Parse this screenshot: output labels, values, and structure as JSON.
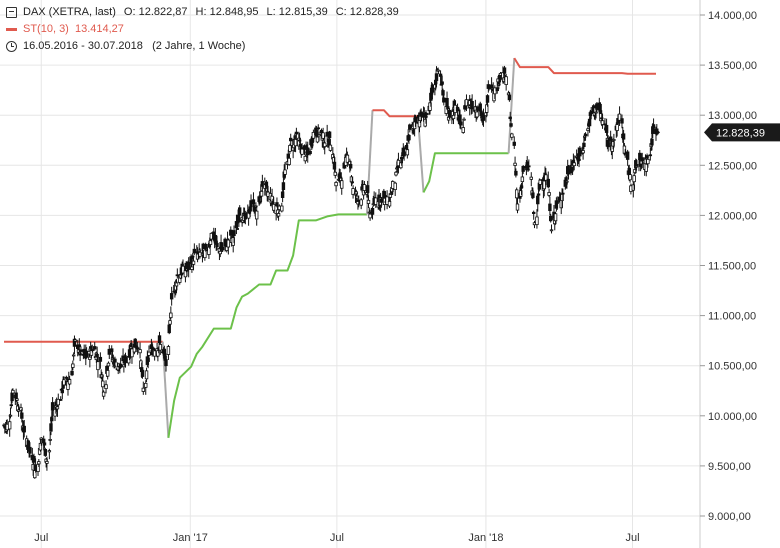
{
  "legend": {
    "symbol": "DAX (XETRA, last)",
    "o_label": "O:",
    "o_value": "12.822,87",
    "h_label": "H:",
    "h_value": "12.848,95",
    "l_label": "L:",
    "l_value": "12.815,39",
    "c_label": "C:",
    "c_value": "12.828,39",
    "indicator": "ST(10, 3)",
    "indicator_value": "13.414,27",
    "range": "16.05.2016 - 30.07.2018",
    "range_span": "(2 Jahre, 1 Woche)"
  },
  "colors": {
    "supertrend_down": "#e05a4e",
    "supertrend_up": "#6cc14a",
    "supertrend_flip": "#aaaaaa",
    "candle": "#111111",
    "grid": "#e6e6e6",
    "last_label_bg": "#1a1a1a"
  },
  "chart_data": {
    "type": "candlestick",
    "title": "DAX (XETRA, last)",
    "x_tick_labels": [
      "Jul",
      "Jan '17",
      "Jul",
      "Jan '18",
      "Jul"
    ],
    "x_tick_dates": [
      "2016-07-01",
      "2017-01-01",
      "2017-07-01",
      "2018-01-01",
      "2018-07-01"
    ],
    "y_ticks": [
      9000,
      9500,
      10000,
      10500,
      11000,
      11500,
      12000,
      12500,
      13000,
      13500,
      14000
    ],
    "y_tick_labels": [
      "9.000,00",
      "9.500,00",
      "10.000,00",
      "10.500,00",
      "11.000,00",
      "11.500,00",
      "12.000,00",
      "12.500,00",
      "13.000,00",
      "13.500,00",
      "14.000,00"
    ],
    "ylim": [
      8950,
      14080
    ],
    "last_value": 12828.39,
    "last_value_label": "12.828,39",
    "weekly_close": [
      [
        "2016-05-16",
        9900
      ],
      [
        "2016-05-23",
        10250
      ],
      [
        "2016-05-30",
        10100
      ],
      [
        "2016-06-06",
        9800
      ],
      [
        "2016-06-13",
        9630
      ],
      [
        "2016-06-20",
        9450
      ],
      [
        "2016-06-27",
        9780
      ],
      [
        "2016-07-04",
        9550
      ],
      [
        "2016-07-11",
        10050
      ],
      [
        "2016-07-18",
        10150
      ],
      [
        "2016-07-25",
        10330
      ],
      [
        "2016-08-01",
        10370
      ],
      [
        "2016-08-08",
        10730
      ],
      [
        "2016-08-15",
        10600
      ],
      [
        "2016-08-22",
        10590
      ],
      [
        "2016-08-29",
        10680
      ],
      [
        "2016-09-05",
        10570
      ],
      [
        "2016-09-12",
        10280
      ],
      [
        "2016-09-19",
        10630
      ],
      [
        "2016-09-26",
        10510
      ],
      [
        "2016-10-03",
        10490
      ],
      [
        "2016-10-10",
        10580
      ],
      [
        "2016-10-17",
        10700
      ],
      [
        "2016-10-24",
        10710
      ],
      [
        "2016-10-31",
        10260
      ],
      [
        "2016-11-07",
        10630
      ],
      [
        "2016-11-14",
        10680
      ],
      [
        "2016-11-21",
        10700
      ],
      [
        "2016-11-28",
        10510
      ],
      [
        "2016-12-05",
        11200
      ],
      [
        "2016-12-12",
        11400
      ],
      [
        "2016-12-19",
        11450
      ],
      [
        "2016-12-26",
        11480
      ],
      [
        "2017-01-02",
        11600
      ],
      [
        "2017-01-09",
        11620
      ],
      [
        "2017-01-16",
        11630
      ],
      [
        "2017-01-23",
        11810
      ],
      [
        "2017-01-30",
        11670
      ],
      [
        "2017-02-06",
        11660
      ],
      [
        "2017-02-13",
        11760
      ],
      [
        "2017-02-20",
        11800
      ],
      [
        "2017-02-27",
        12030
      ],
      [
        "2017-03-06",
        11960
      ],
      [
        "2017-03-13",
        12100
      ],
      [
        "2017-03-20",
        12050
      ],
      [
        "2017-03-27",
        12310
      ],
      [
        "2017-04-03",
        12220
      ],
      [
        "2017-04-10",
        12110
      ],
      [
        "2017-04-17",
        12050
      ],
      [
        "2017-04-24",
        12440
      ],
      [
        "2017-05-01",
        12720
      ],
      [
        "2017-05-08",
        12770
      ],
      [
        "2017-05-15",
        12640
      ],
      [
        "2017-05-22",
        12600
      ],
      [
        "2017-05-29",
        12820
      ],
      [
        "2017-06-05",
        12830
      ],
      [
        "2017-06-12",
        12750
      ],
      [
        "2017-06-19",
        12730
      ],
      [
        "2017-06-26",
        12330
      ],
      [
        "2017-07-03",
        12390
      ],
      [
        "2017-07-10",
        12640
      ],
      [
        "2017-07-17",
        12240
      ],
      [
        "2017-07-24",
        12160
      ],
      [
        "2017-07-31",
        12300
      ],
      [
        "2017-08-07",
        12010
      ],
      [
        "2017-08-14",
        12170
      ],
      [
        "2017-08-21",
        12170
      ],
      [
        "2017-08-28",
        12140
      ],
      [
        "2017-09-04",
        12300
      ],
      [
        "2017-09-11",
        12520
      ],
      [
        "2017-09-18",
        12590
      ],
      [
        "2017-09-25",
        12830
      ],
      [
        "2017-10-02",
        12960
      ],
      [
        "2017-10-09",
        12990
      ],
      [
        "2017-10-16",
        13000
      ],
      [
        "2017-10-23",
        13220
      ],
      [
        "2017-10-30",
        13480
      ],
      [
        "2017-11-06",
        13130
      ],
      [
        "2017-11-13",
        13000
      ],
      [
        "2017-11-20",
        13060
      ],
      [
        "2017-11-27",
        12860
      ],
      [
        "2017-12-04",
        13150
      ],
      [
        "2017-12-11",
        13100
      ],
      [
        "2017-12-18",
        13070
      ],
      [
        "2017-12-25",
        12920
      ],
      [
        "2018-01-01",
        13320
      ],
      [
        "2018-01-08",
        13250
      ],
      [
        "2018-01-15",
        13430
      ],
      [
        "2018-01-22",
        13340
      ],
      [
        "2018-01-29",
        12790
      ],
      [
        "2018-02-05",
        12110
      ],
      [
        "2018-02-12",
        12450
      ],
      [
        "2018-02-19",
        12480
      ],
      [
        "2018-02-26",
        11910
      ],
      [
        "2018-03-05",
        12350
      ],
      [
        "2018-03-12",
        12390
      ],
      [
        "2018-03-19",
        11890
      ],
      [
        "2018-03-26",
        12100
      ],
      [
        "2018-04-02",
        12240
      ],
      [
        "2018-04-09",
        12440
      ],
      [
        "2018-04-16",
        12540
      ],
      [
        "2018-04-23",
        12580
      ],
      [
        "2018-04-30",
        12820
      ],
      [
        "2018-05-07",
        13000
      ],
      [
        "2018-05-14",
        13080
      ],
      [
        "2018-05-21",
        12940
      ],
      [
        "2018-05-28",
        12720
      ],
      [
        "2018-06-04",
        12770
      ],
      [
        "2018-06-11",
        13010
      ],
      [
        "2018-06-18",
        12580
      ],
      [
        "2018-06-25",
        12310
      ],
      [
        "2018-07-02",
        12500
      ],
      [
        "2018-07-09",
        12540
      ],
      [
        "2018-07-16",
        12560
      ],
      [
        "2018-07-23",
        12860
      ],
      [
        "2018-07-30",
        12828
      ]
    ],
    "supertrend": [
      {
        "trend": "down",
        "points": [
          [
            "2016-05-16",
            10740
          ],
          [
            "2016-11-28",
            10740
          ]
        ]
      },
      {
        "trend": "flip",
        "points": [
          [
            "2016-11-28",
            10740
          ],
          [
            "2016-12-05",
            9780
          ]
        ]
      },
      {
        "trend": "up",
        "points": [
          [
            "2016-12-05",
            9780
          ],
          [
            "2016-12-12",
            10150
          ],
          [
            "2016-12-19",
            10380
          ],
          [
            "2017-01-02",
            10490
          ],
          [
            "2017-01-09",
            10620
          ],
          [
            "2017-01-16",
            10690
          ],
          [
            "2017-01-30",
            10870
          ],
          [
            "2017-02-20",
            10870
          ],
          [
            "2017-02-27",
            11080
          ],
          [
            "2017-03-06",
            11190
          ],
          [
            "2017-03-13",
            11220
          ],
          [
            "2017-03-27",
            11310
          ],
          [
            "2017-04-10",
            11310
          ],
          [
            "2017-04-17",
            11450
          ],
          [
            "2017-05-01",
            11450
          ],
          [
            "2017-05-08",
            11600
          ],
          [
            "2017-05-15",
            11950
          ],
          [
            "2017-06-05",
            11950
          ],
          [
            "2017-06-19",
            11990
          ],
          [
            "2017-07-03",
            12010
          ],
          [
            "2017-08-07",
            12010
          ]
        ]
      },
      {
        "trend": "flip",
        "points": [
          [
            "2017-08-07",
            12010
          ],
          [
            "2017-08-14",
            13050
          ]
        ]
      },
      {
        "trend": "down",
        "points": [
          [
            "2017-08-14",
            13050
          ],
          [
            "2017-08-28",
            13050
          ],
          [
            "2017-09-04",
            12990
          ],
          [
            "2017-10-09",
            12990
          ]
        ]
      },
      {
        "trend": "flip",
        "points": [
          [
            "2017-10-09",
            12990
          ],
          [
            "2017-10-16",
            12230
          ]
        ]
      },
      {
        "trend": "up",
        "points": [
          [
            "2017-10-16",
            12230
          ],
          [
            "2017-10-23",
            12340
          ],
          [
            "2017-10-30",
            12620
          ],
          [
            "2018-01-29",
            12620
          ]
        ]
      },
      {
        "trend": "flip",
        "points": [
          [
            "2018-01-29",
            12620
          ],
          [
            "2018-02-05",
            13570
          ]
        ]
      },
      {
        "trend": "down",
        "points": [
          [
            "2018-02-05",
            13570
          ],
          [
            "2018-02-12",
            13480
          ],
          [
            "2018-03-19",
            13480
          ],
          [
            "2018-03-26",
            13420
          ],
          [
            "2018-06-18",
            13420
          ],
          [
            "2018-06-25",
            13414
          ],
          [
            "2018-07-30",
            13414
          ]
        ]
      }
    ]
  }
}
